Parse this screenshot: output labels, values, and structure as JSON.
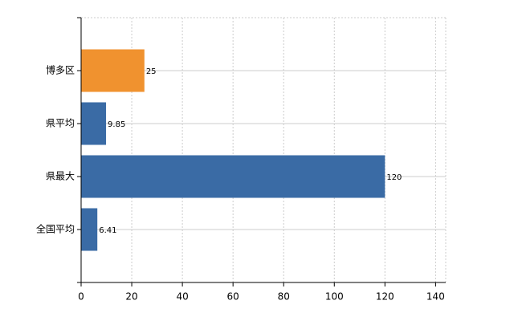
{
  "chart_data": {
    "type": "hbar",
    "categories": [
      "博多区",
      "県平均",
      "県最大",
      "全国平均"
    ],
    "values": [
      25,
      9.85,
      120,
      6.41
    ],
    "colors": [
      "#f0922f",
      "#3a6ba5",
      "#3a6ba5",
      "#3a6ba5"
    ],
    "xlim": [
      0,
      144
    ],
    "xticks": [
      0,
      20,
      40,
      60,
      80,
      100,
      120,
      140
    ],
    "grid": true
  }
}
